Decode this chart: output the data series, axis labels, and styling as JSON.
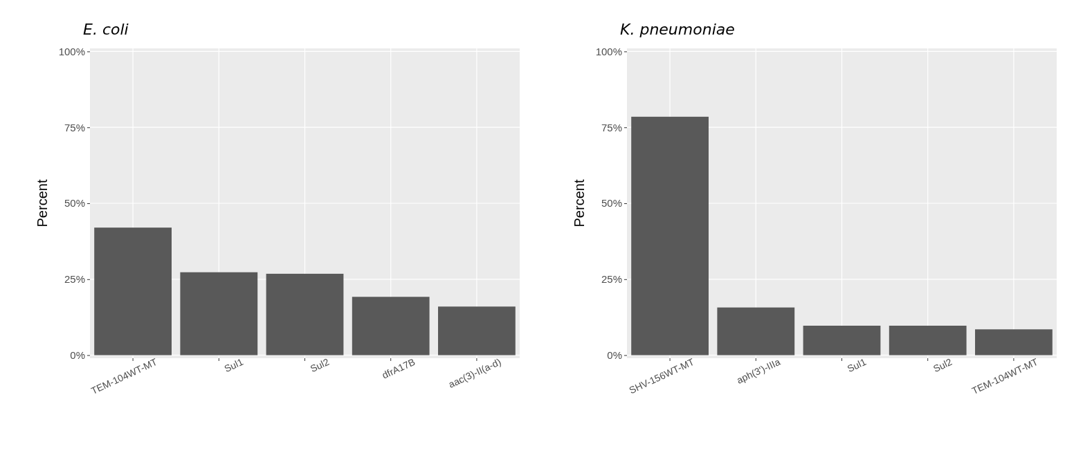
{
  "chart_data": [
    {
      "type": "bar",
      "title": "E. coli",
      "ylabel": "Percent",
      "categories": [
        "TEM-104WT-MT",
        "Sul1",
        "Sul2",
        "dfrA17B",
        "aac(3)-II(a-d)"
      ],
      "values": [
        42,
        27.3,
        26.8,
        19.2,
        16
      ],
      "color": "#595959",
      "ylim": [
        -1,
        101
      ],
      "yticks": [
        {
          "value": 0,
          "label": "0%"
        },
        {
          "value": 25,
          "label": "25%"
        },
        {
          "value": 50,
          "label": "50%"
        },
        {
          "value": 75,
          "label": "75%"
        },
        {
          "value": 100,
          "label": "100%"
        }
      ],
      "grid": true
    },
    {
      "type": "bar",
      "title": "K. pneumoniae",
      "ylabel": "Percent",
      "categories": [
        "SHV-156WT-MT",
        "aph(3')-IIIa",
        "Sul1",
        "Sul2",
        "TEM-104WT-MT"
      ],
      "values": [
        78.5,
        15.7,
        9.7,
        9.7,
        8.5
      ],
      "color": "#595959",
      "ylim": [
        -1,
        101
      ],
      "yticks": [
        {
          "value": 0,
          "label": "0%"
        },
        {
          "value": 25,
          "label": "25%"
        },
        {
          "value": 50,
          "label": "50%"
        },
        {
          "value": 75,
          "label": "75%"
        },
        {
          "value": 100,
          "label": "100%"
        }
      ],
      "grid": true
    }
  ]
}
